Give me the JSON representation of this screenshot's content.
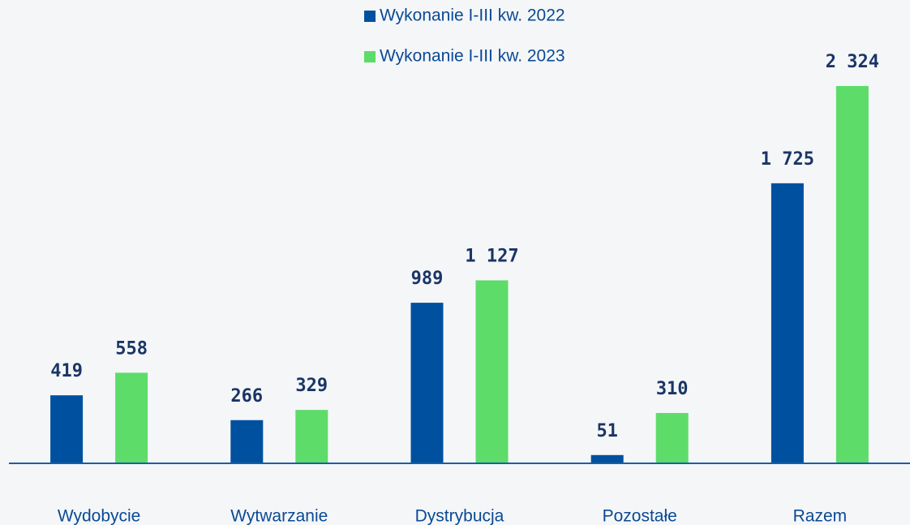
{
  "chart_data": {
    "type": "bar",
    "categories": [
      "Wydobycie",
      "Wytwarzanie",
      "Dystrybucja",
      "Pozostałe",
      "Razem"
    ],
    "series": [
      {
        "name": "Wykonanie I-III kw. 2022",
        "color": "#0050a0",
        "values": [
          419,
          266,
          989,
          51,
          1725
        ],
        "value_labels": [
          "419",
          "266",
          "989",
          "51",
          "1 725"
        ]
      },
      {
        "name": "Wykonanie I-III kw. 2023",
        "color": "#5ddc6a",
        "values": [
          558,
          329,
          1127,
          310,
          2324
        ],
        "value_labels": [
          "558",
          "329",
          "1 127",
          "310",
          "2 324"
        ]
      }
    ],
    "legend": "top"
  }
}
